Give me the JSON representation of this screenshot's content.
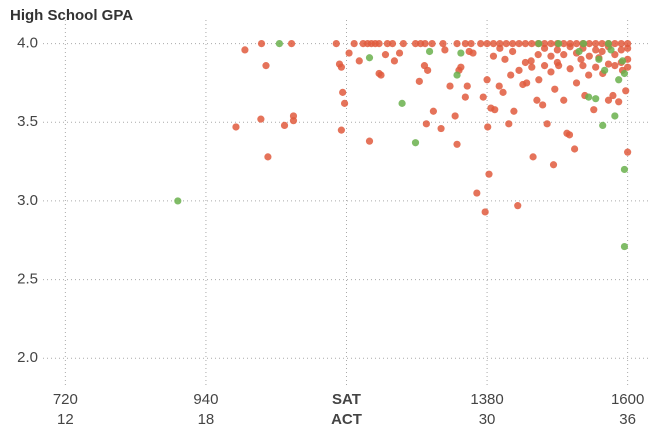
{
  "chart_data": {
    "type": "scatter",
    "title": "High School GPA",
    "x_label": "SAT",
    "x_label_2": "ACT",
    "xlim": [
      685,
      1635
    ],
    "ylim": [
      1.83,
      4.15
    ],
    "xticks": [
      720,
      940,
      {
        "value": 1160,
        "label": "SAT"
      },
      1380,
      1600
    ],
    "xticks_2": [
      {
        "value": 720,
        "label": "12"
      },
      {
        "value": 940,
        "label": "18"
      },
      {
        "value": 1160,
        "label": "ACT"
      },
      {
        "value": 1380,
        "label": "30"
      },
      {
        "value": 1600,
        "label": "36"
      }
    ],
    "yticks": [
      {
        "value": 2,
        "label": "2.0"
      },
      2.5,
      {
        "value": 3,
        "label": "3.0"
      },
      3.5,
      {
        "value": 4,
        "label": "4.0"
      }
    ],
    "grid": true,
    "series": [
      {
        "color": "#e05a3d",
        "x": [
          987,
          1001,
          1027,
          1026,
          1034,
          1037,
          1063,
          1074,
          1077,
          1077,
          1149,
          1152,
          1154,
          1157,
          1152,
          1164,
          1180,
          1196,
          1211,
          1214,
          1221,
          1235,
          1243,
          1274,
          1282,
          1287,
          1296,
          1285,
          1308,
          1314,
          1322,
          1330,
          1333,
          1336,
          1339,
          1346,
          1349,
          1352,
          1358,
          1364,
          1377,
          1383,
          1381,
          1374,
          1380,
          1386,
          1392,
          1399,
          1405,
          1408,
          1414,
          1417,
          1422,
          1428,
          1430,
          1436,
          1442,
          1449,
          1452,
          1458,
          1461,
          1467,
          1474,
          1480,
          1484,
          1486,
          1492,
          1500,
          1505,
          1509,
          1517,
          1520,
          1527,
          1533,
          1539,
          1547,
          1555,
          1561,
          1570,
          1577,
          1586,
          1600,
          1597,
          1592,
          1144,
          1172,
          1186,
          1193,
          1199,
          1205,
          1211,
          1224,
          1232,
          1249,
          1268,
          1276,
          1283,
          1294,
          1311,
          1333,
          1346,
          1355,
          1370,
          1380,
          1390,
          1400,
          1410,
          1420,
          1430,
          1440,
          1450,
          1460,
          1470,
          1480,
          1490,
          1500,
          1510,
          1520,
          1530,
          1540,
          1550,
          1560,
          1570,
          1580,
          1590,
          1600,
          1460,
          1470,
          1480,
          1490,
          1500,
          1510,
          1520,
          1530,
          1540,
          1550,
          1560,
          1570,
          1580,
          1590,
          1600,
          1600,
          1600,
          1590,
          1580,
          1420,
          1400,
          1390,
          1440,
          1450,
          1470,
          1490,
          1510,
          1530,
          1550,
          1570
        ],
        "values": [
          3.47,
          3.96,
          4.0,
          3.52,
          3.86,
          3.28,
          3.48,
          4.0,
          3.54,
          3.51,
          3.87,
          3.85,
          3.69,
          3.62,
          3.45,
          3.94,
          3.89,
          3.38,
          3.81,
          3.8,
          3.93,
          3.89,
          3.94,
          3.76,
          3.86,
          3.83,
          3.57,
          3.49,
          3.46,
          3.96,
          3.73,
          3.54,
          3.36,
          3.83,
          3.85,
          3.66,
          3.73,
          3.95,
          3.94,
          3.05,
          2.93,
          3.17,
          3.47,
          3.66,
          3.77,
          3.59,
          3.58,
          3.73,
          3.69,
          3.9,
          3.49,
          3.8,
          3.57,
          2.97,
          3.83,
          3.74,
          3.75,
          3.89,
          3.28,
          3.64,
          3.77,
          3.61,
          3.49,
          3.82,
          3.23,
          3.71,
          3.86,
          3.64,
          3.43,
          3.42,
          3.33,
          3.75,
          3.9,
          3.67,
          3.8,
          3.58,
          3.91,
          3.81,
          3.64,
          3.67,
          3.63,
          3.31,
          3.7,
          3.83,
          4.0,
          4.0,
          4.0,
          4.0,
          4.0,
          4.0,
          4.0,
          4.0,
          4.0,
          4.0,
          4.0,
          4.0,
          4.0,
          4.0,
          4.0,
          4.0,
          4.0,
          4.0,
          4.0,
          4.0,
          4.0,
          4.0,
          4.0,
          4.0,
          4.0,
          4.0,
          4.0,
          4.0,
          4.0,
          4.0,
          4.0,
          4.0,
          4.0,
          4.0,
          4.0,
          4.0,
          4.0,
          4.0,
          4.0,
          4.0,
          4.0,
          4.0,
          3.93,
          3.97,
          3.92,
          3.96,
          3.93,
          3.98,
          3.94,
          3.97,
          3.92,
          3.96,
          3.95,
          3.98,
          3.93,
          3.96,
          3.97,
          3.9,
          3.85,
          3.88,
          3.86,
          3.95,
          3.97,
          3.92,
          3.88,
          3.85,
          3.86,
          3.88,
          3.84,
          3.86,
          3.85,
          3.87
        ]
      },
      {
        "color": "#6ab04c",
        "x": [
          896,
          1055,
          1196,
          1247,
          1268,
          1333,
          1339,
          1290,
          1539,
          1550,
          1561,
          1580,
          1595,
          1595,
          1570,
          1555,
          1564,
          1586,
          1592,
          1461,
          1524,
          1492,
          1531,
          1574,
          1595
        ],
        "values": [
          3.0,
          4.0,
          3.91,
          3.62,
          3.37,
          3.8,
          3.94,
          3.95,
          3.66,
          3.65,
          3.48,
          3.54,
          3.2,
          2.71,
          4.0,
          3.9,
          3.83,
          3.77,
          3.89,
          4.0,
          3.95,
          4.0,
          4.0,
          3.96,
          3.81
        ]
      }
    ]
  }
}
